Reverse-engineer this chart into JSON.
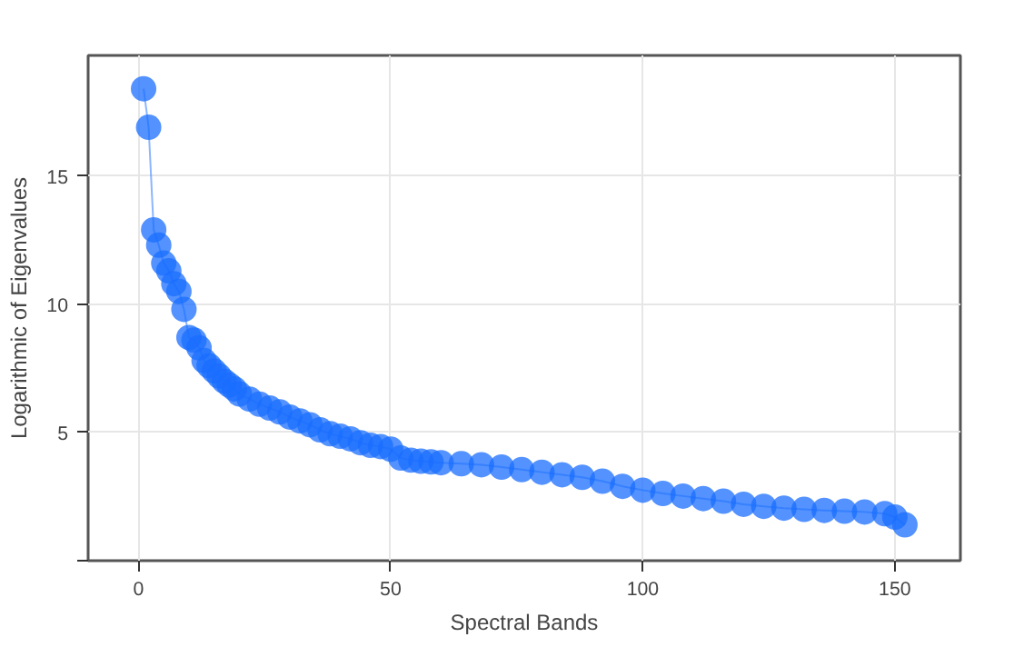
{
  "chart_data": {
    "type": "line",
    "xlabel": "Spectral Bands",
    "ylabel": "Logarithmic of Eigenvalues",
    "xlim": [
      -10,
      163
    ],
    "ylim": [
      0,
      19.7
    ],
    "xticks": [
      0,
      50,
      100,
      150
    ],
    "yticks": [
      {
        "value": 0,
        "label": null
      },
      5,
      10,
      15
    ],
    "grid": true,
    "marker": "circle",
    "line_style": "solid",
    "series": [
      {
        "color": "#1a6dff",
        "x": [
          1,
          2,
          3,
          4,
          5,
          6,
          7,
          8,
          9,
          10,
          11,
          12,
          13,
          14,
          15,
          16,
          17,
          18,
          19,
          20,
          22,
          24,
          26,
          28,
          30,
          32,
          34,
          36,
          38,
          40,
          42,
          44,
          46,
          48,
          50,
          52,
          54,
          56,
          58,
          60,
          64,
          68,
          72,
          76,
          80,
          84,
          88,
          92,
          96,
          100,
          104,
          108,
          112,
          116,
          120,
          124,
          128,
          132,
          136,
          140,
          144,
          148,
          150,
          152
        ],
        "values": [
          18.4,
          16.9,
          12.9,
          12.3,
          11.6,
          11.3,
          10.8,
          10.5,
          9.8,
          8.7,
          8.6,
          8.3,
          7.8,
          7.6,
          7.4,
          7.2,
          7.0,
          6.85,
          6.7,
          6.5,
          6.3,
          6.1,
          5.95,
          5.8,
          5.6,
          5.45,
          5.3,
          5.1,
          4.95,
          4.85,
          4.75,
          4.6,
          4.5,
          4.45,
          4.35,
          4.0,
          3.92,
          3.88,
          3.85,
          3.82,
          3.78,
          3.74,
          3.65,
          3.55,
          3.45,
          3.35,
          3.25,
          3.1,
          2.9,
          2.75,
          2.62,
          2.52,
          2.42,
          2.32,
          2.2,
          2.12,
          2.05,
          2.0,
          1.96,
          1.93,
          1.9,
          1.83,
          1.7,
          1.4
        ]
      }
    ]
  }
}
